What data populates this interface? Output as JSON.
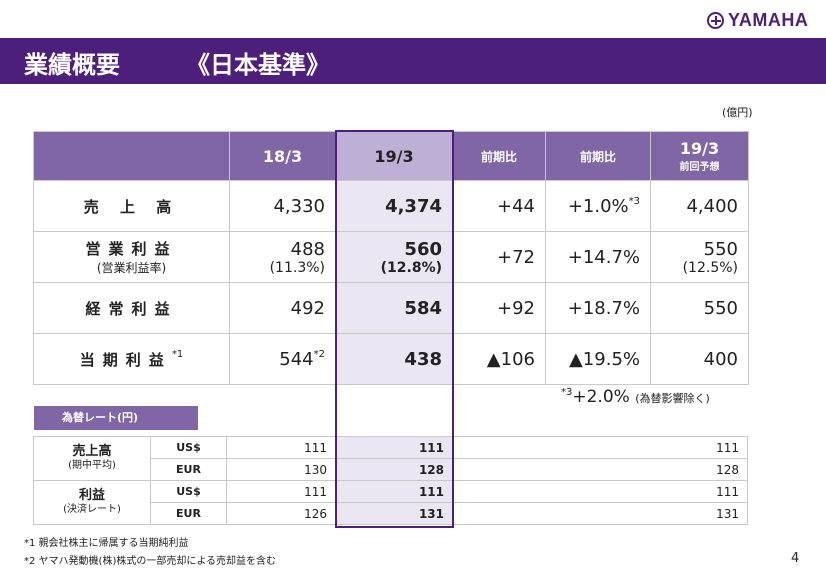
{
  "brand": {
    "name": "YAMAHA"
  },
  "header": {
    "title": "業績概要",
    "subtitle": "《日本基準》"
  },
  "unit_note": "(億円)",
  "main_table": {
    "columns": [
      {
        "label": "18/3",
        "sub": ""
      },
      {
        "label": "19/3",
        "sub": ""
      },
      {
        "label": "前期比",
        "sub": ""
      },
      {
        "label": "前期比",
        "sub": ""
      },
      {
        "label": "19/3",
        "sub": "前回予想"
      }
    ],
    "rows": [
      {
        "label": "売 上 高",
        "label_sub": "",
        "label_note": "",
        "c1": "4,330",
        "c1_sub": "",
        "c2": "4,374",
        "c2_sub": "",
        "c3": "+44",
        "c4": "+1.0%",
        "c4_note": "*3",
        "c5": "4,400",
        "c5_sub": ""
      },
      {
        "label": "営業利益",
        "label_sub": "(営業利益率)",
        "label_note": "",
        "c1": "488",
        "c1_sub": "(11.3%)",
        "c2": "560",
        "c2_sub": "(12.8%)",
        "c3": "+72",
        "c4": "+14.7%",
        "c4_note": "",
        "c5": "550",
        "c5_sub": "(12.5%)"
      },
      {
        "label": "経常利益",
        "label_sub": "",
        "label_note": "",
        "c1": "492",
        "c1_sub": "",
        "c2": "584",
        "c2_sub": "",
        "c3": "+92",
        "c4": "+18.7%",
        "c4_note": "",
        "c5": "550",
        "c5_sub": ""
      },
      {
        "label": "当期利益",
        "label_sub": "",
        "label_note": "*1",
        "c1": "544",
        "c1_sub": "",
        "c1_note": "*2",
        "c2": "438",
        "c2_sub": "",
        "c3": "▲106",
        "c4": "▲19.5%",
        "c4_note": "",
        "c5": "400",
        "c5_sub": ""
      }
    ]
  },
  "fx_note": {
    "mark": "*3",
    "value": "+2.0%",
    "text": "(為替影響除く)"
  },
  "fx_table": {
    "title": "為替レート(円)",
    "groups": [
      {
        "label": "売上高",
        "sub": "(期中平均)",
        "rows": [
          {
            "cur": "US$",
            "v1": "111",
            "v2": "111",
            "v3": "111"
          },
          {
            "cur": "EUR",
            "v1": "130",
            "v2": "128",
            "v3": "128"
          }
        ]
      },
      {
        "label": "利益",
        "sub": "(決済レート)",
        "rows": [
          {
            "cur": "US$",
            "v1": "111",
            "v2": "111",
            "v3": "111"
          },
          {
            "cur": "EUR",
            "v1": "126",
            "v2": "131",
            "v3": "131"
          }
        ]
      }
    ]
  },
  "footnotes": [
    "*1 親会社株主に帰属する当期純利益",
    "*2 ヤマハ発動機(株)株式の一部売却による売却益を含む"
  ],
  "page_number": "4",
  "colors": {
    "brand": "#4b1f7a",
    "header_cell": "#8066a5",
    "highlight_header": "#bdb0d4",
    "highlight_cell": "#ebe7f2"
  }
}
